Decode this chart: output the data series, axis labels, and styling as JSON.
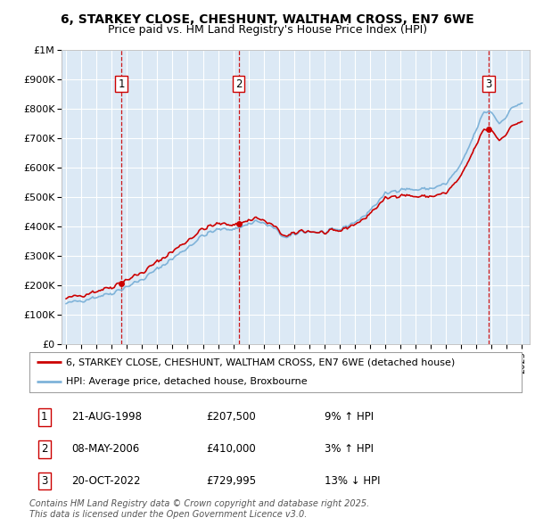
{
  "title": "6, STARKEY CLOSE, CHESHUNT, WALTHAM CROSS, EN7 6WE",
  "subtitle": "Price paid vs. HM Land Registry's House Price Index (HPI)",
  "background_color": "#dce9f5",
  "plot_bg_color": "#dce9f5",
  "outer_bg_color": "#ffffff",
  "hpi_color": "#7fb3d9",
  "price_color": "#cc0000",
  "sale_marker_color": "#cc0000",
  "ylim": [
    0,
    1000000
  ],
  "yticks": [
    0,
    100000,
    200000,
    300000,
    400000,
    500000,
    600000,
    700000,
    800000,
    900000,
    1000000
  ],
  "ytick_labels": [
    "£0",
    "£100K",
    "£200K",
    "£300K",
    "£400K",
    "£500K",
    "£600K",
    "£700K",
    "£800K",
    "£900K",
    "£1M"
  ],
  "xlim_start": 1994.7,
  "xlim_end": 2025.5,
  "sales": [
    {
      "num": 1,
      "year": 1998.64,
      "price": 207500,
      "label": "1"
    },
    {
      "num": 2,
      "year": 2006.36,
      "price": 410000,
      "label": "2"
    },
    {
      "num": 3,
      "year": 2022.8,
      "price": 729995,
      "label": "3"
    }
  ],
  "sale_table": [
    {
      "num": "1",
      "date": "21-AUG-1998",
      "price": "£207,500",
      "pct": "9% ↑ HPI"
    },
    {
      "num": "2",
      "date": "08-MAY-2006",
      "price": "£410,000",
      "pct": "3% ↑ HPI"
    },
    {
      "num": "3",
      "date": "20-OCT-2022",
      "price": "£729,995",
      "pct": "13% ↓ HPI"
    }
  ],
  "legend_entries": [
    "6, STARKEY CLOSE, CHESHUNT, WALTHAM CROSS, EN7 6WE (detached house)",
    "HPI: Average price, detached house, Broxbourne"
  ],
  "footer": "Contains HM Land Registry data © Crown copyright and database right 2025.\nThis data is licensed under the Open Government Licence v3.0.",
  "vline_color": "#cc0000",
  "grid_color": "#ffffff",
  "title_fontsize": 10,
  "subtitle_fontsize": 9,
  "axis_fontsize": 8,
  "legend_fontsize": 8,
  "table_fontsize": 8.5
}
